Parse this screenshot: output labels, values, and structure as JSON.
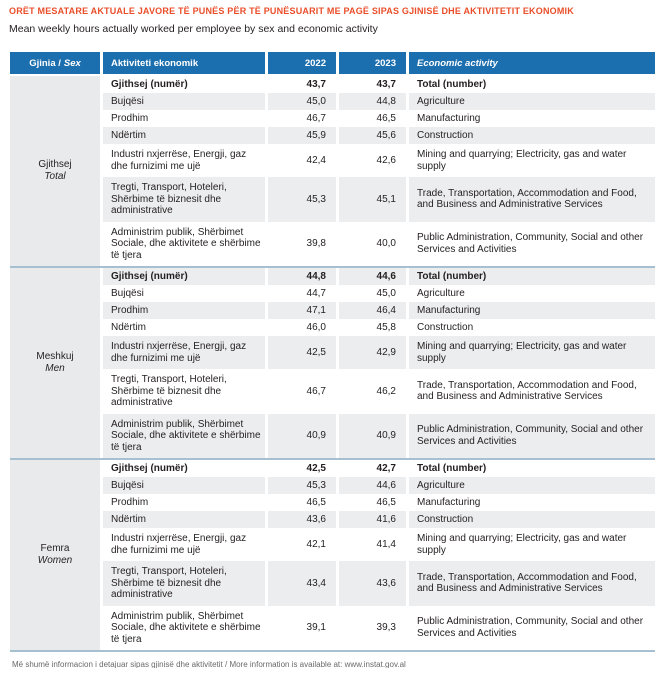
{
  "title": "ORËT MESATARE AKTUALE JAVORE TË PUNËS PËR TË PUNËSUARIT ME PAGË SIPAS GJINISË DHE AKTIVITETIT EKONOMIK",
  "subtitle": "Mean weekly hours actually worked per employee by sex and economic activity",
  "colors": {
    "title_red": "#ea4e29",
    "header_blue": "#1c6fae",
    "stripe_gray": "#ecedee",
    "sex_column_gray": "#e9eaeb",
    "separator_blue": "#a6c0d2"
  },
  "table": {
    "headers": {
      "sex_sq": "Gjinia /",
      "sex_en": "Sex",
      "activity_sq": "Aktiviteti ekonomik",
      "y2022": "2022",
      "y2023": "2023",
      "activity_en": "Economic activity"
    },
    "groups": [
      {
        "label_sq": "Gjithsej",
        "label_en": "Total",
        "rows": [
          {
            "sq": "Gjithsej (numër)",
            "v2022": "43,7",
            "v2023": "43,7",
            "en": "Total (number)"
          },
          {
            "sq": "Bujqësi",
            "v2022": "45,0",
            "v2023": "44,8",
            "en": "Agriculture"
          },
          {
            "sq": "Prodhim",
            "v2022": "46,7",
            "v2023": "46,5",
            "en": "Manufacturing"
          },
          {
            "sq": "Ndërtim",
            "v2022": "45,9",
            "v2023": "45,6",
            "en": "Construction"
          },
          {
            "sq": "Industri nxjerrëse, Energji, gaz dhe furnizimi me ujë",
            "v2022": "42,4",
            "v2023": "42,6",
            "en": "Mining and quarrying; Electricity, gas and water supply"
          },
          {
            "sq": "Tregti, Transport, Hoteleri, Shërbime të biznesit dhe administrative",
            "v2022": "45,3",
            "v2023": "45,1",
            "en": "Trade, Transportation, Accommodation and Food, and Business and Administrative Services"
          },
          {
            "sq": "Administrim publik, Shërbimet Sociale, dhe aktivitete e shërbime të tjera",
            "v2022": "39,8",
            "v2023": "40,0",
            "en": "Public Administration, Community, Social and other Services and Activities"
          }
        ]
      },
      {
        "label_sq": "Meshkuj",
        "label_en": "Men",
        "rows": [
          {
            "sq": "Gjithsej (numër)",
            "v2022": "44,8",
            "v2023": "44,6",
            "en": "Total (number)"
          },
          {
            "sq": "Bujqësi",
            "v2022": "44,7",
            "v2023": "45,0",
            "en": "Agriculture"
          },
          {
            "sq": "Prodhim",
            "v2022": "47,1",
            "v2023": "46,4",
            "en": "Manufacturing"
          },
          {
            "sq": "Ndërtim",
            "v2022": "46,0",
            "v2023": "45,8",
            "en": "Construction"
          },
          {
            "sq": "Industri nxjerrëse, Energji, gaz dhe furnizimi me ujë",
            "v2022": "42,5",
            "v2023": "42,9",
            "en": "Mining and quarrying; Electricity, gas and water supply"
          },
          {
            "sq": "Tregti, Transport, Hoteleri, Shërbime të biznesit dhe administrative",
            "v2022": "46,7",
            "v2023": "46,2",
            "en": "Trade, Transportation, Accommodation and Food, and Business and Administrative Services"
          },
          {
            "sq": "Administrim publik, Shërbimet Sociale, dhe aktivitete e shërbime të tjera",
            "v2022": "40,9",
            "v2023": "40,9",
            "en": "Public Administration, Community, Social and other Services and Activities"
          }
        ]
      },
      {
        "label_sq": "Femra",
        "label_en": "Women",
        "rows": [
          {
            "sq": "Gjithsej (numër)",
            "v2022": "42,5",
            "v2023": "42,7",
            "en": "Total (number)"
          },
          {
            "sq": "Bujqësi",
            "v2022": "45,3",
            "v2023": "44,6",
            "en": "Agriculture"
          },
          {
            "sq": "Prodhim",
            "v2022": "46,5",
            "v2023": "46,5",
            "en": "Manufacturing"
          },
          {
            "sq": "Ndërtim",
            "v2022": "43,6",
            "v2023": "41,6",
            "en": "Construction"
          },
          {
            "sq": "Industri nxjerrëse, Energji, gaz dhe furnizimi me ujë",
            "v2022": "42,1",
            "v2023": "41,4",
            "en": "Mining and quarrying; Electricity, gas and water supply"
          },
          {
            "sq": "Tregti, Transport, Hoteleri, Shërbime të biznesit dhe administrative",
            "v2022": "43,4",
            "v2023": "43,6",
            "en": "Trade, Transportation, Accommodation and Food, and Business and Administrative Services"
          },
          {
            "sq": "Administrim publik, Shërbimet Sociale, dhe aktivitete e shërbime të tjera",
            "v2022": "39,1",
            "v2023": "39,3",
            "en": "Public Administration, Community, Social and other Services and Activities"
          }
        ]
      }
    ]
  },
  "footnote": "Më shumë informacion i detajuar sipas gjinisë dhe aktivitetit / More information is available at: www.instat.gov.al"
}
